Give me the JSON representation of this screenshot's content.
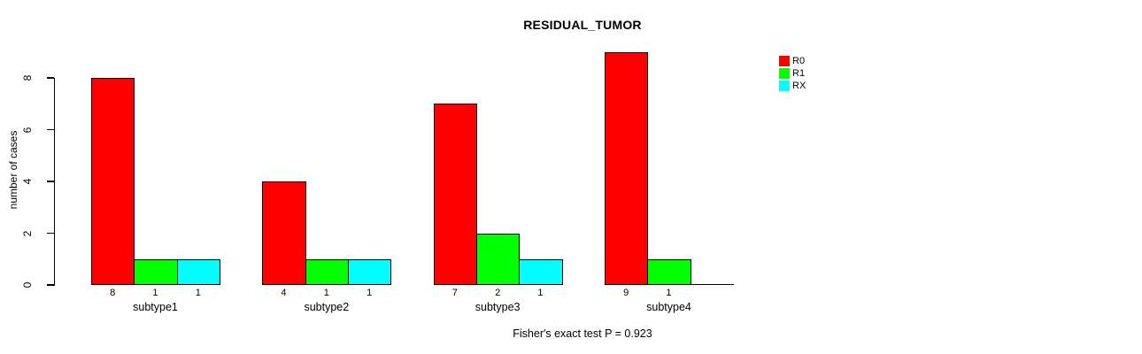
{
  "chart_data": {
    "type": "bar",
    "title": "RESIDUAL_TUMOR",
    "ylabel": "number of cases",
    "xlabel": "",
    "categories": [
      "subtype1",
      "subtype2",
      "subtype3",
      "subtype4"
    ],
    "series": [
      {
        "name": "R0",
        "color": "#ff0000",
        "values": [
          8,
          4,
          7,
          9
        ]
      },
      {
        "name": "R1",
        "color": "#00ff00",
        "values": [
          1,
          1,
          2,
          1
        ]
      },
      {
        "name": "RX",
        "color": "#00ffff",
        "values": [
          1,
          1,
          1,
          0
        ]
      }
    ],
    "yticks": [
      0,
      2,
      4,
      6,
      8
    ],
    "ylim": [
      0,
      9
    ],
    "grid": false,
    "legend_position": "top-right",
    "bar_value_labels_shown": true,
    "annotation": "Fisher's exact test P = 0.923"
  },
  "colors": {
    "background": "#ffffff",
    "axis": "#000000",
    "text": "#000000",
    "bar_border": "#000000",
    "series_r0": "#ff0000",
    "series_r1": "#00ff00",
    "series_rx": "#00ffff"
  }
}
